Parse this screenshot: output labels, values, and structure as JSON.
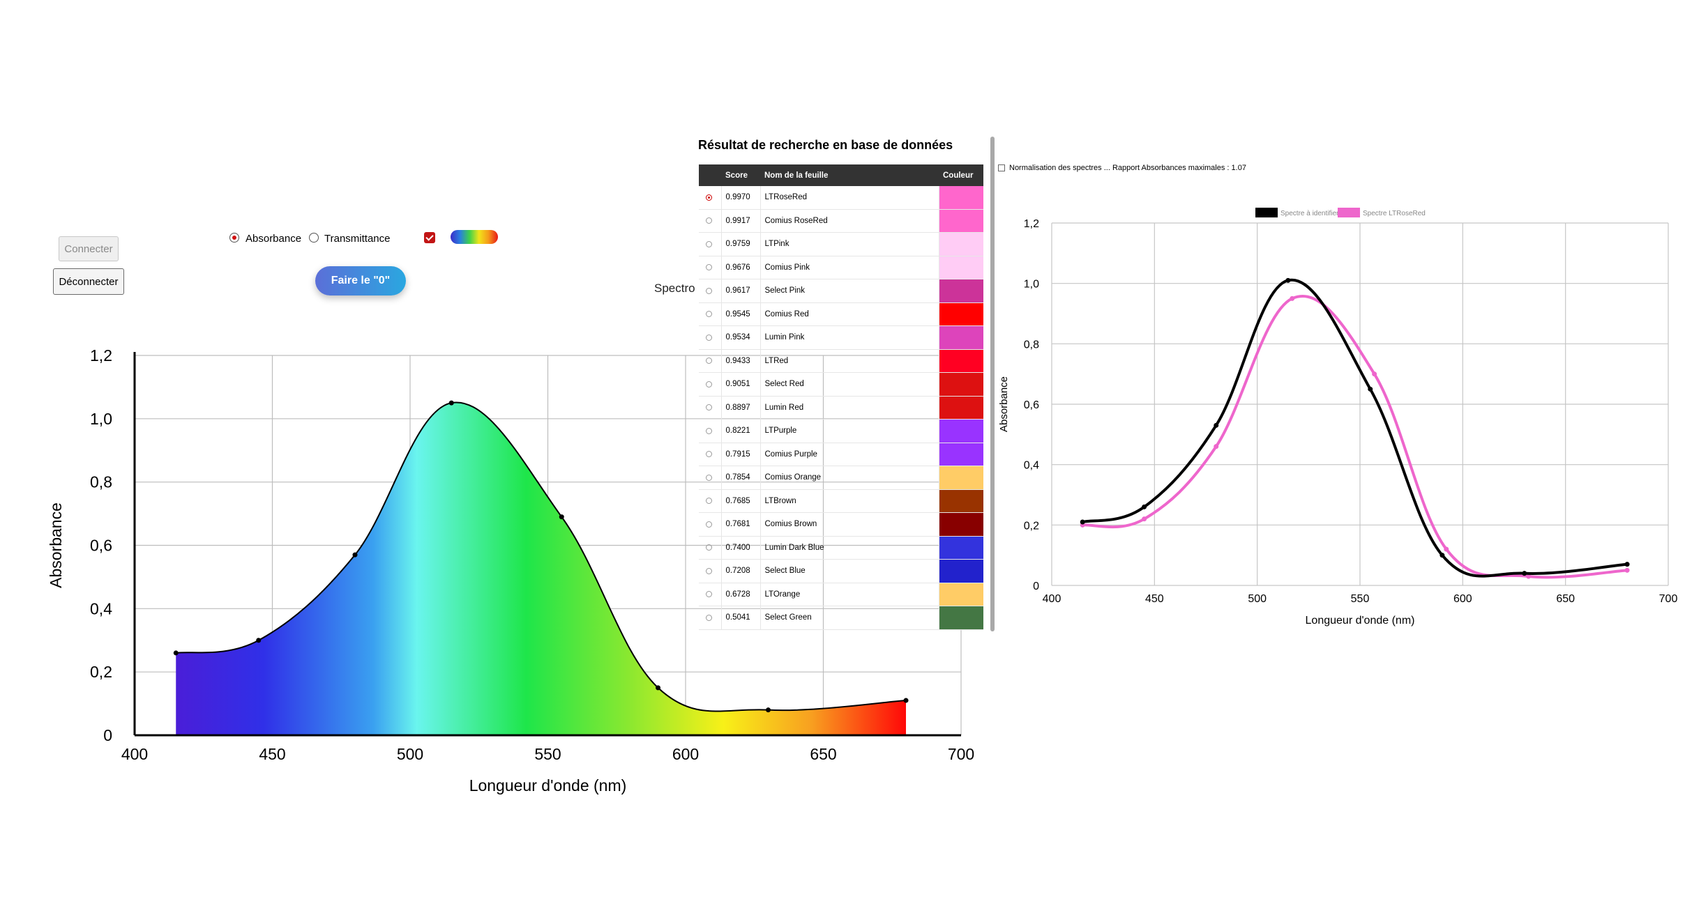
{
  "controls": {
    "connect_label": "Connecter",
    "disconnect_label": "Déconnecter",
    "zero_label": "Faire le \"0\"",
    "absorbance_label": "Absorbance",
    "transmittance_label": "Transmittance",
    "mode_selected": "Absorbance",
    "color_fill_checked": true,
    "hidden_label_fragment": "Spectro"
  },
  "database": {
    "title": "Résultat de recherche en base de données",
    "columns": [
      "",
      "Score",
      "Nom de la feuille",
      "Couleur"
    ],
    "selected_index": 0,
    "rows": [
      {
        "score": "0.9970",
        "name": "LTRoseRed",
        "color": "#ff66cc"
      },
      {
        "score": "0.9917",
        "name": "Comius RoseRed",
        "color": "#ff66cc"
      },
      {
        "score": "0.9759",
        "name": "LTPink",
        "color": "#ffccf5"
      },
      {
        "score": "0.9676",
        "name": "Comius Pink",
        "color": "#ffccf5"
      },
      {
        "score": "0.9617",
        "name": "Select Pink",
        "color": "#cc3399"
      },
      {
        "score": "0.9545",
        "name": "Comius Red",
        "color": "#ff0000"
      },
      {
        "score": "0.9534",
        "name": "Lumin Pink",
        "color": "#dd44bb"
      },
      {
        "score": "0.9433",
        "name": "LTRed",
        "color": "#ff0022"
      },
      {
        "score": "0.9051",
        "name": "Select Red",
        "color": "#dd1111"
      },
      {
        "score": "0.8897",
        "name": "Lumin Red",
        "color": "#dd1111"
      },
      {
        "score": "0.8221",
        "name": "LTPurple",
        "color": "#9933ff"
      },
      {
        "score": "0.7915",
        "name": "Comius Purple",
        "color": "#9933ff"
      },
      {
        "score": "0.7854",
        "name": "Comius Orange",
        "color": "#ffcc66"
      },
      {
        "score": "0.7685",
        "name": "LTBrown",
        "color": "#993300"
      },
      {
        "score": "0.7681",
        "name": "Comius Brown",
        "color": "#880000"
      },
      {
        "score": "0.7400",
        "name": "Lumin Dark Blue",
        "color": "#3333dd"
      },
      {
        "score": "0.7208",
        "name": "Select Blue",
        "color": "#2222cc"
      },
      {
        "score": "0.6728",
        "name": "LTOrange",
        "color": "#ffcc66"
      },
      {
        "score": "0.5041",
        "name": "Select Green",
        "color": "#447744"
      }
    ]
  },
  "normalisation": {
    "label": "Normalisation des spectres ... Rapport Absorbances maximales : 1.07",
    "checked": false
  },
  "chart_data": [
    {
      "type": "area",
      "title": "",
      "xlabel": "Longueur d'onde (nm)",
      "ylabel": "Absorbance",
      "xlim": [
        400,
        700
      ],
      "ylim": [
        0,
        1.2
      ],
      "xticks": [
        "400",
        "450",
        "500",
        "550",
        "600",
        "650",
        "700"
      ],
      "yticks": [
        "0",
        "0,2",
        "0,4",
        "0,6",
        "0,8",
        "1,0",
        "1,2"
      ],
      "grid": true,
      "fill": "visible-spectrum",
      "series": [
        {
          "x": [
            415,
            445,
            480,
            515,
            555,
            590,
            630,
            680
          ],
          "y": [
            0.26,
            0.3,
            0.57,
            1.05,
            0.69,
            0.15,
            0.08,
            0.11
          ]
        }
      ]
    },
    {
      "type": "line",
      "title": "",
      "xlabel": "Longueur d'onde (nm)",
      "ylabel": "Absorbance",
      "xlim": [
        400,
        700
      ],
      "ylim": [
        0,
        1.2
      ],
      "xticks": [
        "400",
        "450",
        "500",
        "550",
        "600",
        "650",
        "700"
      ],
      "yticks": [
        "0",
        "0,2",
        "0,4",
        "0,6",
        "0,8",
        "1,0",
        "1,2"
      ],
      "grid": true,
      "legend_position": "top-center",
      "series": [
        {
          "name": "Spectre à identifier",
          "color": "#000000",
          "x": [
            415,
            445,
            480,
            515,
            555,
            590,
            630,
            680
          ],
          "y": [
            0.21,
            0.26,
            0.53,
            1.01,
            0.65,
            0.1,
            0.04,
            0.07
          ]
        },
        {
          "name": "Spectre  LTRoseRed",
          "color": "#ee66cc",
          "x": [
            415,
            445,
            480,
            517,
            557,
            592,
            632,
            680
          ],
          "y": [
            0.2,
            0.22,
            0.46,
            0.95,
            0.7,
            0.12,
            0.03,
            0.05
          ]
        }
      ]
    }
  ]
}
